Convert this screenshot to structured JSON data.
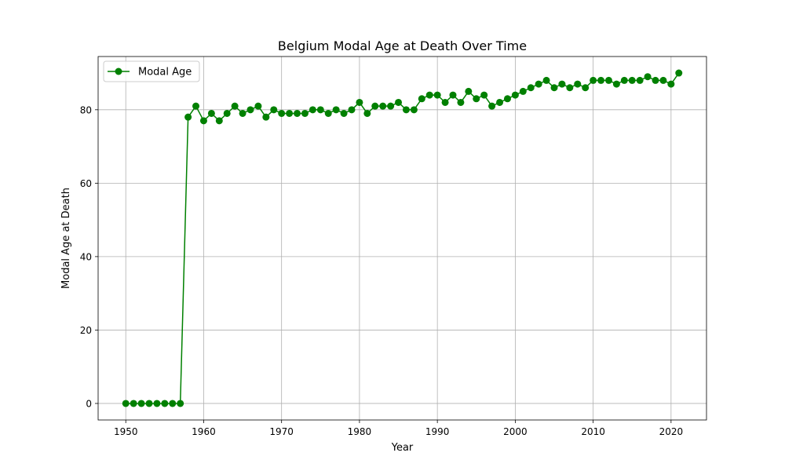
{
  "chart_data": {
    "type": "line",
    "title": "Belgium Modal Age at Death Over Time",
    "xlabel": "Year",
    "ylabel": "Modal Age at Death",
    "xlim": [
      1946.45,
      2024.55
    ],
    "ylim": [
      -4.5,
      94.5
    ],
    "xticks": [
      1950,
      1960,
      1970,
      1980,
      1990,
      2000,
      2010,
      2020
    ],
    "yticks": [
      0,
      20,
      40,
      60,
      80
    ],
    "grid": true,
    "legend_position": "upper-left",
    "line_color": "#008000",
    "x": [
      1950,
      1951,
      1952,
      1953,
      1954,
      1955,
      1956,
      1957,
      1958,
      1959,
      1960,
      1961,
      1962,
      1963,
      1964,
      1965,
      1966,
      1967,
      1968,
      1969,
      1970,
      1971,
      1972,
      1973,
      1974,
      1975,
      1976,
      1977,
      1978,
      1979,
      1980,
      1981,
      1982,
      1983,
      1984,
      1985,
      1986,
      1987,
      1988,
      1989,
      1990,
      1991,
      1992,
      1993,
      1994,
      1995,
      1996,
      1997,
      1998,
      1999,
      2000,
      2001,
      2002,
      2003,
      2004,
      2005,
      2006,
      2007,
      2008,
      2009,
      2010,
      2011,
      2012,
      2013,
      2014,
      2015,
      2016,
      2017,
      2018,
      2019,
      2020,
      2021
    ],
    "series": [
      {
        "name": "Modal Age",
        "values": [
          0,
          0,
          0,
          0,
          0,
          0,
          0,
          0,
          78,
          81,
          77,
          79,
          77,
          79,
          81,
          79,
          80,
          81,
          78,
          80,
          79,
          79,
          79,
          79,
          80,
          80,
          79,
          80,
          79,
          80,
          82,
          79,
          81,
          81,
          81,
          82,
          80,
          80,
          83,
          84,
          84,
          82,
          84,
          82,
          85,
          83,
          84,
          81,
          82,
          83,
          84,
          85,
          86,
          87,
          88,
          86,
          87,
          86,
          87,
          86,
          88,
          88,
          88,
          87,
          88,
          88,
          88,
          89,
          88,
          88,
          87,
          90
        ]
      }
    ]
  }
}
